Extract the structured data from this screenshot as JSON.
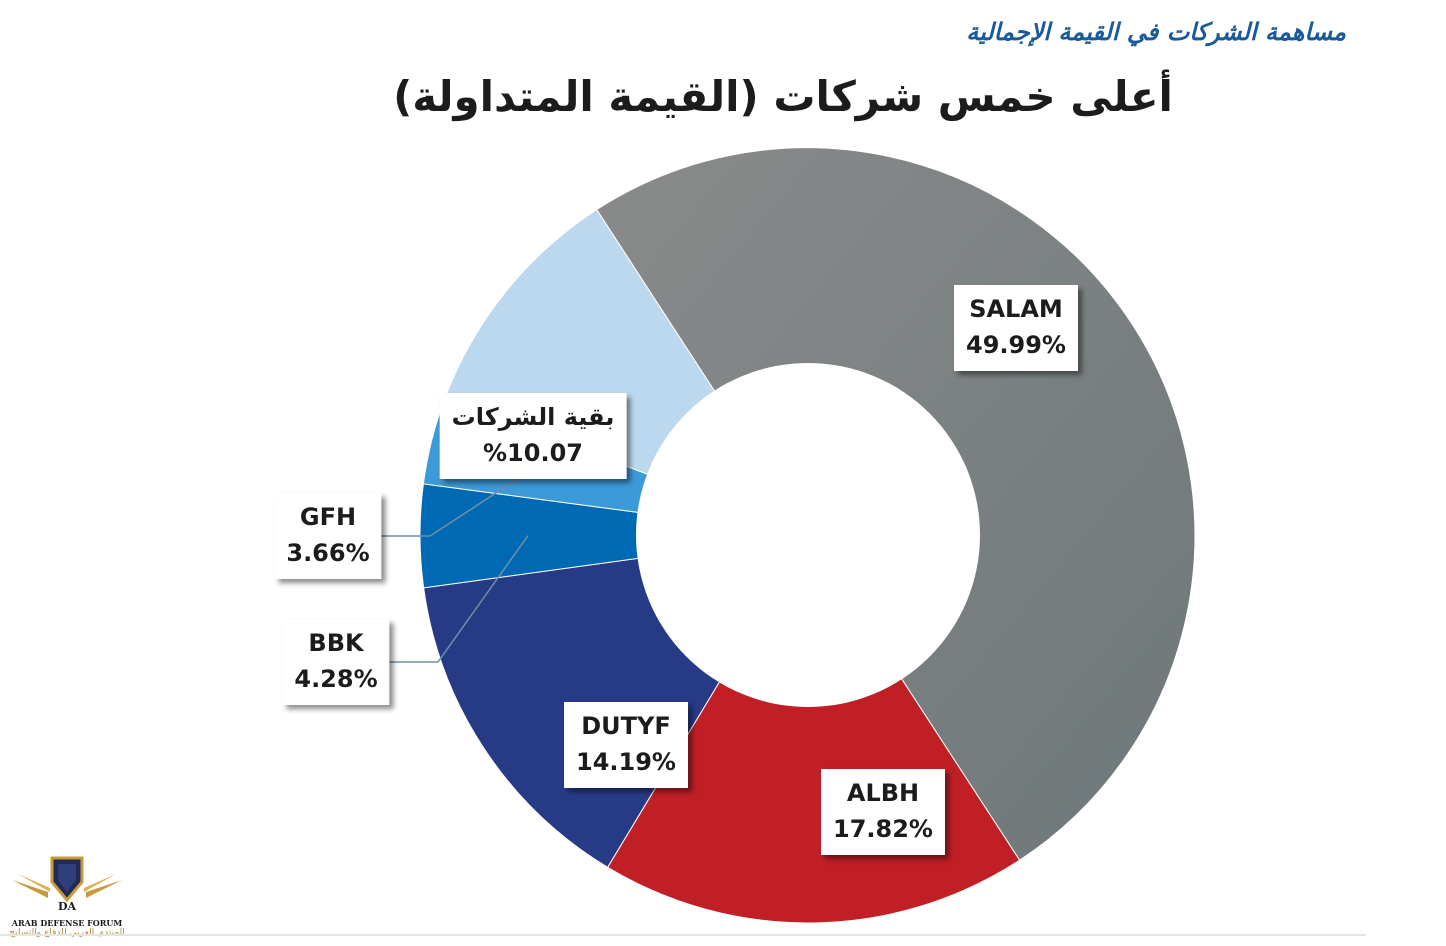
{
  "header": {
    "caption": "مساهمة الشركات في القيمة الإجمالية",
    "title": "أعلى خمس شركات (القيمة المتداولة)"
  },
  "watermark": {
    "monogram": "DA",
    "name": "ARAB DEFENSE FORUM",
    "subtitle": "المنتدى العربي للدفاع والتسليح"
  },
  "chart_data": {
    "type": "pie",
    "variant": "donut",
    "title": "أعلى خمس شركات (القيمة المتداولة)",
    "legend": "callout-labels",
    "slices": [
      {
        "key": "salam",
        "name": "SALAM",
        "percent_label": "49.99%",
        "value": 49.99,
        "color": "#7b7e7f"
      },
      {
        "key": "albh",
        "name": "ALBH",
        "percent_label": "17.82%",
        "value": 17.82,
        "color": "#c01f26"
      },
      {
        "key": "dutyf",
        "name": "DUTYF",
        "percent_label": "14.19%",
        "value": 14.19,
        "color": "#273a86"
      },
      {
        "key": "bbk",
        "name": "BBK",
        "percent_label": "4.28%",
        "value": 4.28,
        "color": "#0069b4"
      },
      {
        "key": "gfh",
        "name": "GFH",
        "percent_label": "3.66%",
        "value": 3.66,
        "color": "#3d9ad8"
      },
      {
        "key": "others",
        "name": "بقية الشركات",
        "percent_label": "%10.07",
        "value": 10.07,
        "color": "#bcd8ef"
      }
    ]
  }
}
